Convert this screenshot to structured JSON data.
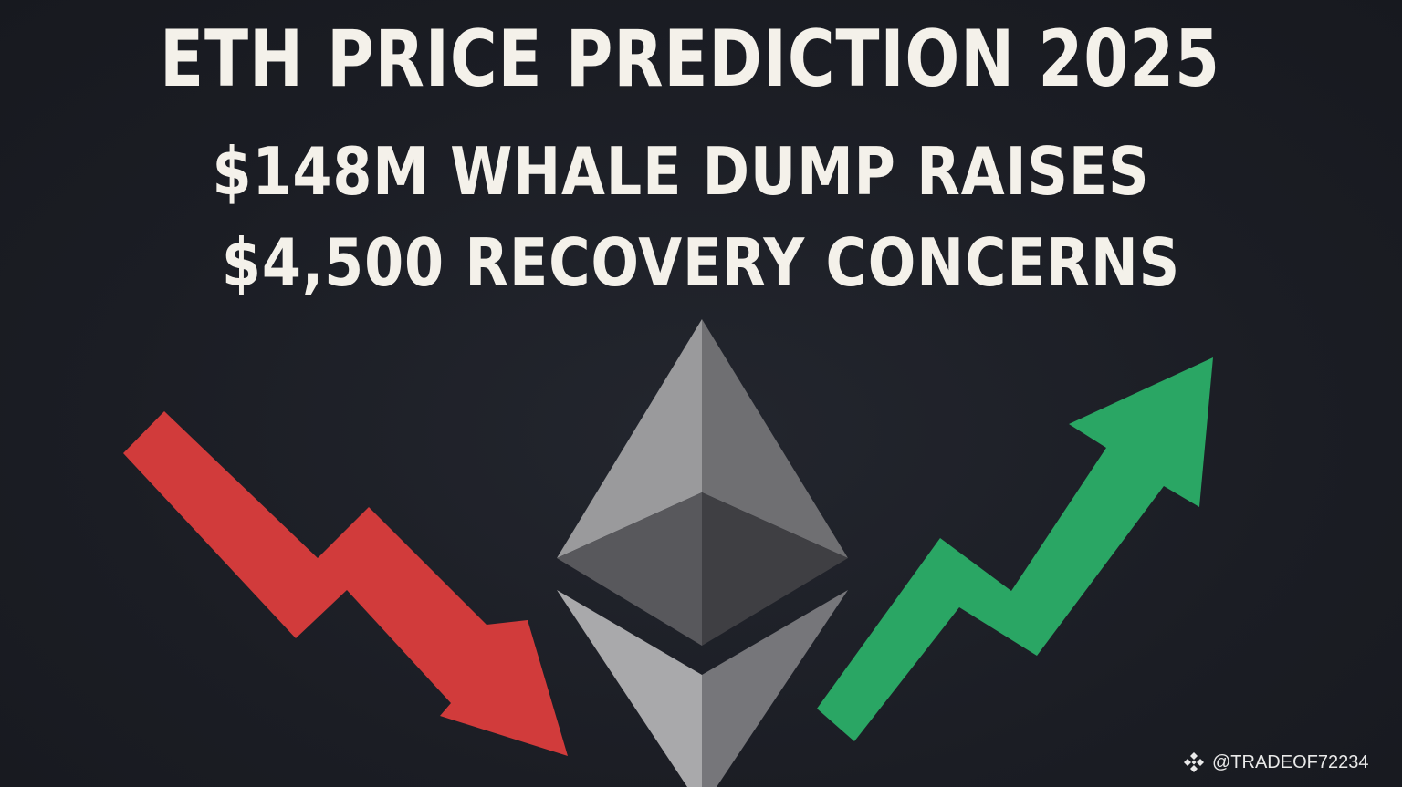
{
  "headline": {
    "line1": "ETH PRICE PREDICTION 2025",
    "line2": "$148M WHALE DUMP RAISES",
    "line3": "$4,500 RECOVERY CONCERNS"
  },
  "watermark": {
    "handle": "@TRADEOF72234",
    "icon": "binance-logo-icon"
  },
  "graphics": {
    "center_icon": "ethereum-logo-icon",
    "left_icon": "red-down-arrow-icon",
    "right_icon": "green-up-arrow-icon"
  },
  "colors": {
    "background": "#1b1d24",
    "text": "#f4f1ea",
    "down_arrow": "#d13b3b",
    "up_arrow": "#2aa664"
  }
}
